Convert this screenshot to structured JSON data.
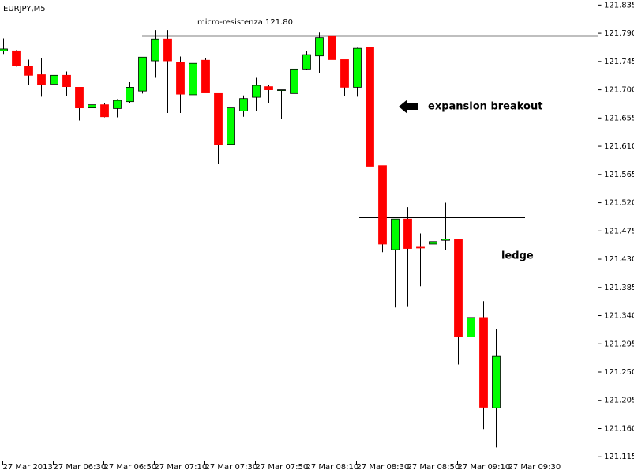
{
  "chart_data": {
    "type": "candlestick",
    "title": "EURJPY,M5",
    "categories": [
      "27 Mar 2013",
      null,
      null,
      null,
      "27 Mar 06:30",
      null,
      null,
      null,
      "27 Mar 06:50",
      null,
      null,
      null,
      "27 Mar 07:10",
      null,
      null,
      null,
      "27 Mar 07:30",
      null,
      null,
      null,
      "27 Mar 07:50",
      null,
      null,
      null,
      "27 Mar 08:10",
      null,
      null,
      null,
      "27 Mar 08:30",
      null,
      null,
      null,
      "27 Mar 08:50",
      null,
      null,
      null,
      "27 Mar 09:10",
      null,
      null,
      null,
      "27 Mar 09:30"
    ],
    "open": [
      121.762,
      121.762,
      121.738,
      121.724,
      121.709,
      121.723,
      121.704,
      121.671,
      121.676,
      121.67,
      121.681,
      121.698,
      121.746,
      121.781,
      121.744,
      121.692,
      121.747,
      121.694,
      121.613,
      121.666,
      121.688,
      121.705,
      121.699,
      121.694,
      121.733,
      121.754,
      121.786,
      121.748,
      121.704,
      121.767,
      121.579,
      121.445,
      121.494,
      121.449,
      121.454,
      121.46,
      121.461,
      121.306,
      121.337,
      121.193,
      null
    ],
    "high": [
      121.782,
      121.763,
      121.748,
      121.751,
      121.726,
      121.729,
      121.704,
      121.694,
      121.678,
      121.685,
      121.712,
      121.752,
      121.795,
      121.795,
      121.753,
      121.752,
      121.751,
      121.694,
      121.69,
      121.691,
      121.719,
      121.707,
      121.7,
      121.734,
      121.762,
      121.791,
      121.793,
      121.748,
      121.767,
      121.77,
      121.579,
      121.494,
      121.513,
      121.471,
      121.481,
      121.52,
      121.462,
      121.358,
      121.363,
      121.319,
      null
    ],
    "low": [
      121.757,
      121.737,
      121.708,
      121.689,
      121.704,
      121.69,
      121.651,
      121.629,
      121.656,
      121.656,
      121.678,
      121.694,
      121.719,
      121.663,
      121.663,
      121.69,
      121.695,
      121.582,
      121.613,
      121.657,
      121.666,
      121.679,
      121.654,
      121.693,
      121.732,
      121.727,
      121.747,
      121.69,
      121.689,
      121.559,
      121.441,
      121.353,
      121.355,
      121.387,
      121.359,
      121.445,
      121.262,
      121.262,
      121.159,
      121.13,
      null
    ],
    "close": [
      121.765,
      121.738,
      121.723,
      121.708,
      121.723,
      121.705,
      121.671,
      121.676,
      121.657,
      121.683,
      121.704,
      121.752,
      121.781,
      121.746,
      121.693,
      121.742,
      121.695,
      121.612,
      121.671,
      121.686,
      121.707,
      121.7,
      121.7,
      121.733,
      121.756,
      121.783,
      121.748,
      121.704,
      121.766,
      121.578,
      121.454,
      121.494,
      121.447,
      121.448,
      121.458,
      121.462,
      121.306,
      121.337,
      121.194,
      121.275,
      null
    ],
    "up_color": "#00ff00",
    "down_color": "#ff0000",
    "ylim": [
      121.109,
      121.843
    ],
    "yticks": [
      121.835,
      {
        "value": 121.79,
        "label": "121.790"
      },
      121.745,
      {
        "value": 121.7,
        "label": "121.700"
      },
      121.655,
      {
        "value": 121.61,
        "label": "121.610"
      },
      121.565,
      {
        "value": 121.52,
        "label": "121.520"
      },
      121.475,
      {
        "value": 121.43,
        "label": "121.430"
      },
      121.385,
      {
        "value": 121.34,
        "label": "121.340"
      },
      121.295,
      {
        "value": 121.25,
        "label": "121.250"
      },
      121.205,
      {
        "value": 121.16,
        "label": "121.160"
      },
      121.115
    ],
    "grid": false,
    "hlines": [
      121.786,
      121.497,
      121.355
    ],
    "resistance_label": "micro-resistenza 121.80",
    "breakout_label": "expansion breakout",
    "ledge_label": "ledge"
  }
}
